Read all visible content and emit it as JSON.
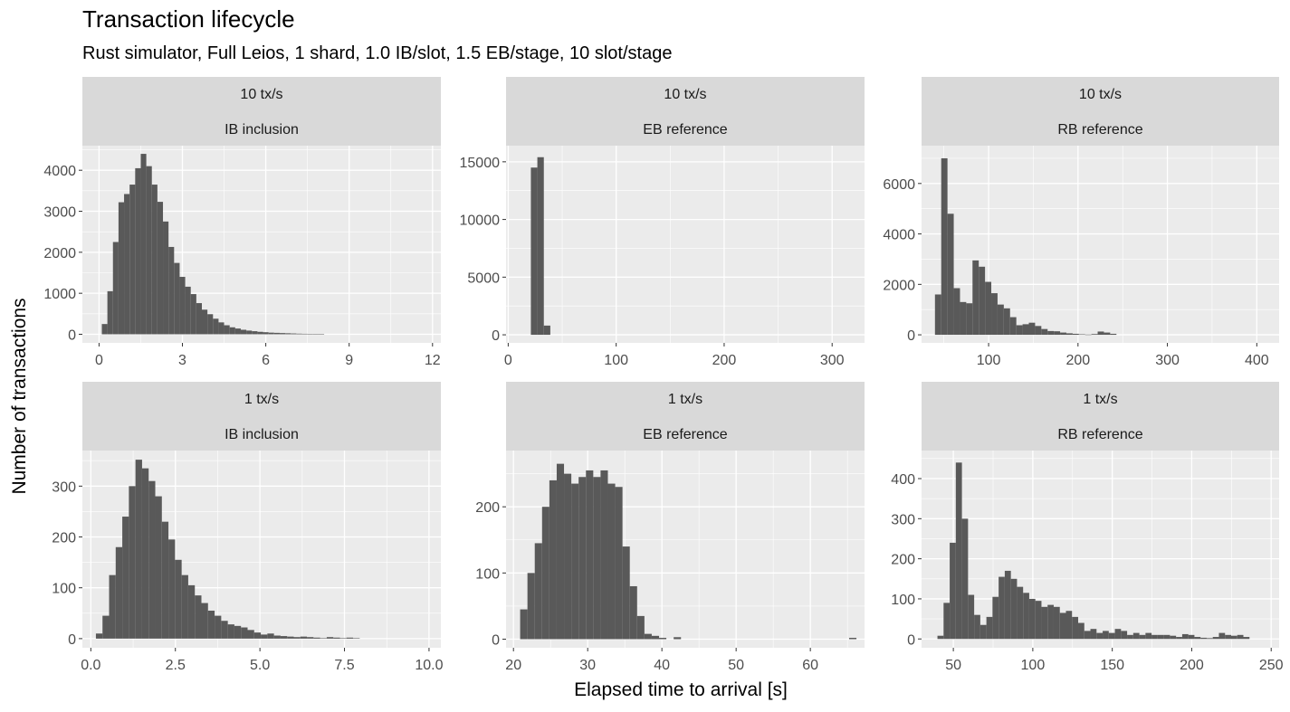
{
  "chart_data": {
    "type": "bar",
    "title": "Transaction lifecycle",
    "subtitle": "Rust simulator, Full Leios, 1 shard, 1.0 IB/slot, 1.5 EB/stage, 10 slot/stage",
    "xlabel": "Elapsed time to arrival [s]",
    "ylabel": "Number of transactions",
    "grid": true,
    "colors": {
      "bar": "#595959",
      "panel_bg": "#ebebeb",
      "strip_bg": "#d9d9d9",
      "grid": "#ffffff"
    },
    "panels": [
      {
        "rate": "10 tx/s",
        "stage": "IB inclusion",
        "xlim": [
          -0.6,
          12.3
        ],
        "ylim": [
          -210,
          4600
        ],
        "xticks": [
          0,
          3,
          6,
          9,
          12
        ],
        "yticks": [
          0,
          1000,
          2000,
          3000,
          4000
        ],
        "bin_start": 0.1,
        "bin_width": 0.2,
        "values": [
          250,
          1050,
          2250,
          3220,
          3420,
          3650,
          4050,
          4400,
          4100,
          3650,
          3230,
          2750,
          2130,
          1740,
          1400,
          1160,
          980,
          760,
          600,
          490,
          380,
          290,
          220,
          170,
          140,
          110,
          90,
          75,
          60,
          50,
          40,
          35,
          30,
          25,
          20,
          15,
          12,
          10,
          8,
          6
        ]
      },
      {
        "rate": "10 tx/s",
        "stage": "EB reference",
        "xlim": [
          -2,
          330
        ],
        "ylim": [
          -700,
          16400
        ],
        "xticks": [
          0,
          100,
          200,
          300
        ],
        "yticks": [
          0,
          5000,
          10000,
          15000
        ],
        "bin_start": 21,
        "bin_width": 6,
        "values": [
          14500,
          15400,
          800
        ]
      },
      {
        "rate": "10 tx/s",
        "stage": "RB reference",
        "xlim": [
          25,
          425
        ],
        "ylim": [
          -320,
          7500
        ],
        "xticks": [
          100,
          200,
          300,
          400
        ],
        "yticks": [
          0,
          2000,
          4000,
          6000
        ],
        "bin_start": 40,
        "bin_width": 7,
        "values": [
          1600,
          7000,
          4800,
          1850,
          1300,
          1250,
          2950,
          2700,
          2100,
          1650,
          1200,
          1050,
          700,
          380,
          420,
          480,
          350,
          230,
          150,
          140,
          90,
          60,
          40,
          20,
          10,
          30,
          130,
          90,
          40
        ]
      },
      {
        "rate": "1 tx/s",
        "stage": "IB inclusion",
        "xlim": [
          -0.25,
          10.35
        ],
        "ylim": [
          -18,
          370
        ],
        "xticks": [
          0,
          2.5,
          5,
          7.5,
          10
        ],
        "xtick_labels": [
          "0.0",
          "2.5",
          "5.0",
          "7.5",
          "10.0"
        ],
        "yticks": [
          0,
          100,
          200,
          300
        ],
        "bin_start": 0.15,
        "bin_width": 0.195,
        "values": [
          10,
          45,
          125,
          180,
          240,
          300,
          352,
          335,
          310,
          280,
          230,
          195,
          155,
          125,
          105,
          85,
          70,
          55,
          45,
          35,
          28,
          25,
          22,
          17,
          12,
          8,
          10,
          6,
          5,
          4,
          3,
          4,
          3,
          2,
          1,
          3,
          2,
          1,
          2,
          1
        ]
      },
      {
        "rate": "1 tx/s",
        "stage": "EB reference",
        "xlim": [
          19,
          67.3
        ],
        "ylim": [
          -13,
          285
        ],
        "xticks": [
          20,
          30,
          40,
          50,
          60
        ],
        "yticks": [
          0,
          100,
          200
        ],
        "bin_start": 20.9,
        "bin_width": 0.985,
        "values": [
          45,
          100,
          145,
          200,
          240,
          265,
          250,
          235,
          245,
          255,
          245,
          255,
          235,
          230,
          140,
          80,
          35,
          8,
          5,
          2,
          0,
          3,
          0,
          0,
          0,
          0,
          0,
          0,
          0,
          0,
          0,
          0,
          0,
          0,
          0,
          0,
          0,
          0,
          0,
          0,
          0,
          0,
          0,
          0,
          0,
          2
        ]
      },
      {
        "rate": "1 tx/s",
        "stage": "RB reference",
        "xlim": [
          30,
          255
        ],
        "ylim": [
          -22,
          470
        ],
        "xticks": [
          50,
          100,
          150,
          200,
          250
        ],
        "yticks": [
          0,
          100,
          200,
          300,
          400
        ],
        "bin_start": 40,
        "bin_width": 3.85,
        "values": [
          8,
          90,
          240,
          440,
          300,
          110,
          60,
          35,
          55,
          105,
          155,
          170,
          150,
          130,
          115,
          100,
          95,
          80,
          85,
          80,
          65,
          70,
          55,
          40,
          20,
          25,
          15,
          20,
          15,
          25,
          20,
          10,
          15,
          10,
          15,
          10,
          10,
          10,
          8,
          5,
          12,
          10,
          5,
          3,
          2,
          5,
          15,
          10,
          8,
          10,
          5
        ]
      }
    ]
  }
}
